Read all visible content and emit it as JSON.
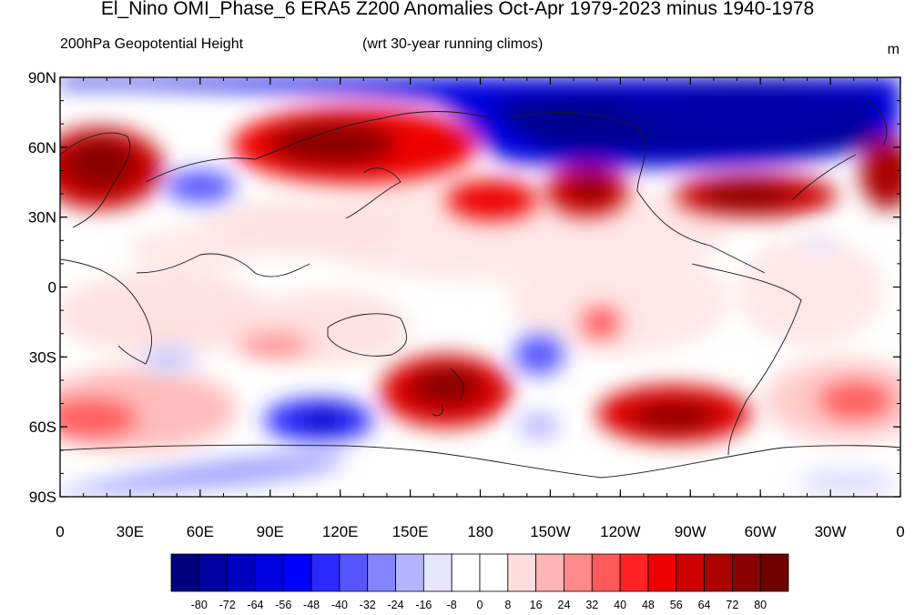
{
  "title": "El_Nino OMI_Phase_6 ERA5 Z200 Anomalies Oct-Apr 1979-2023 minus 1940-1978",
  "subtitle_left": "200hPa Geopotential Height",
  "subtitle_center": "(wrt 30-year running climos)",
  "units": "m",
  "map": {
    "projection": "cylindrical-equidistant",
    "center_longitude": 180,
    "lat_ticks": [
      "90N",
      "60N",
      "30N",
      "0",
      "30S",
      "60S",
      "90S"
    ],
    "lon_ticks": [
      "0",
      "30E",
      "60E",
      "90E",
      "120E",
      "150E",
      "180",
      "150W",
      "120W",
      "90W",
      "60W",
      "30W",
      "0"
    ],
    "anomaly_features": [
      {
        "region": "Arctic / Canada-Greenland",
        "lon_range": [
          180,
          355
        ],
        "lat_range": [
          50,
          90
        ],
        "sign": "negative",
        "peak": -80
      },
      {
        "region": "Europe",
        "lon_range": [
          0,
          30
        ],
        "lat_range": [
          35,
          70
        ],
        "sign": "positive",
        "peak": 80
      },
      {
        "region": "Siberia",
        "lon_range": [
          60,
          170
        ],
        "lat_range": [
          45,
          75
        ],
        "sign": "positive",
        "peak": 72
      },
      {
        "region": "Caspian",
        "lon_range": [
          40,
          75
        ],
        "lat_range": [
          35,
          52
        ],
        "sign": "negative",
        "peak": -32
      },
      {
        "region": "North Pacific",
        "lon_range": [
          170,
          215
        ],
        "lat_range": [
          25,
          40
        ],
        "sign": "positive",
        "peak": 56
      },
      {
        "region": "NE Pacific",
        "lon_range": [
          215,
          245
        ],
        "lat_range": [
          25,
          50
        ],
        "sign": "positive",
        "peak": 72
      },
      {
        "region": "North America",
        "lon_range": [
          255,
          325
        ],
        "lat_range": [
          25,
          45
        ],
        "sign": "positive",
        "peak": 72
      },
      {
        "region": "New Zealand",
        "lon_range": [
          135,
          200
        ],
        "lat_range": [
          -60,
          -30
        ],
        "sign": "positive",
        "peak": 80
      },
      {
        "region": "Southeast Pacific",
        "lon_range": [
          225,
          305
        ],
        "lat_range": [
          -70,
          -45
        ],
        "sign": "positive",
        "peak": 72
      },
      {
        "region": "Southern Ocean south of Australia",
        "lon_range": [
          80,
          150
        ],
        "lat_range": [
          -75,
          -50
        ],
        "sign": "negative",
        "peak": -48
      },
      {
        "region": "Subtropical South Pacific",
        "lon_range": [
          190,
          220
        ],
        "lat_range": [
          -40,
          -20
        ],
        "sign": "negative",
        "peak": -40
      }
    ]
  },
  "colorbar": {
    "labels": [
      "-80",
      "-72",
      "-64",
      "-56",
      "-48",
      "-40",
      "-32",
      "-24",
      "-16",
      "-8",
      "0",
      "8",
      "16",
      "24",
      "32",
      "40",
      "48",
      "56",
      "64",
      "72",
      "80"
    ],
    "colors": [
      "#00007f",
      "#0000a0",
      "#0000c0",
      "#0000e0",
      "#0000ff",
      "#2a2aff",
      "#5656ff",
      "#8484ff",
      "#b3b3ff",
      "#e6e6ff",
      "#ffffff",
      "#ffffff",
      "#ffdede",
      "#ffb5b5",
      "#ff8a8a",
      "#ff5a5a",
      "#ff2222",
      "#ee0000",
      "#cc0000",
      "#aa0000",
      "#880000",
      "#700000"
    ]
  }
}
